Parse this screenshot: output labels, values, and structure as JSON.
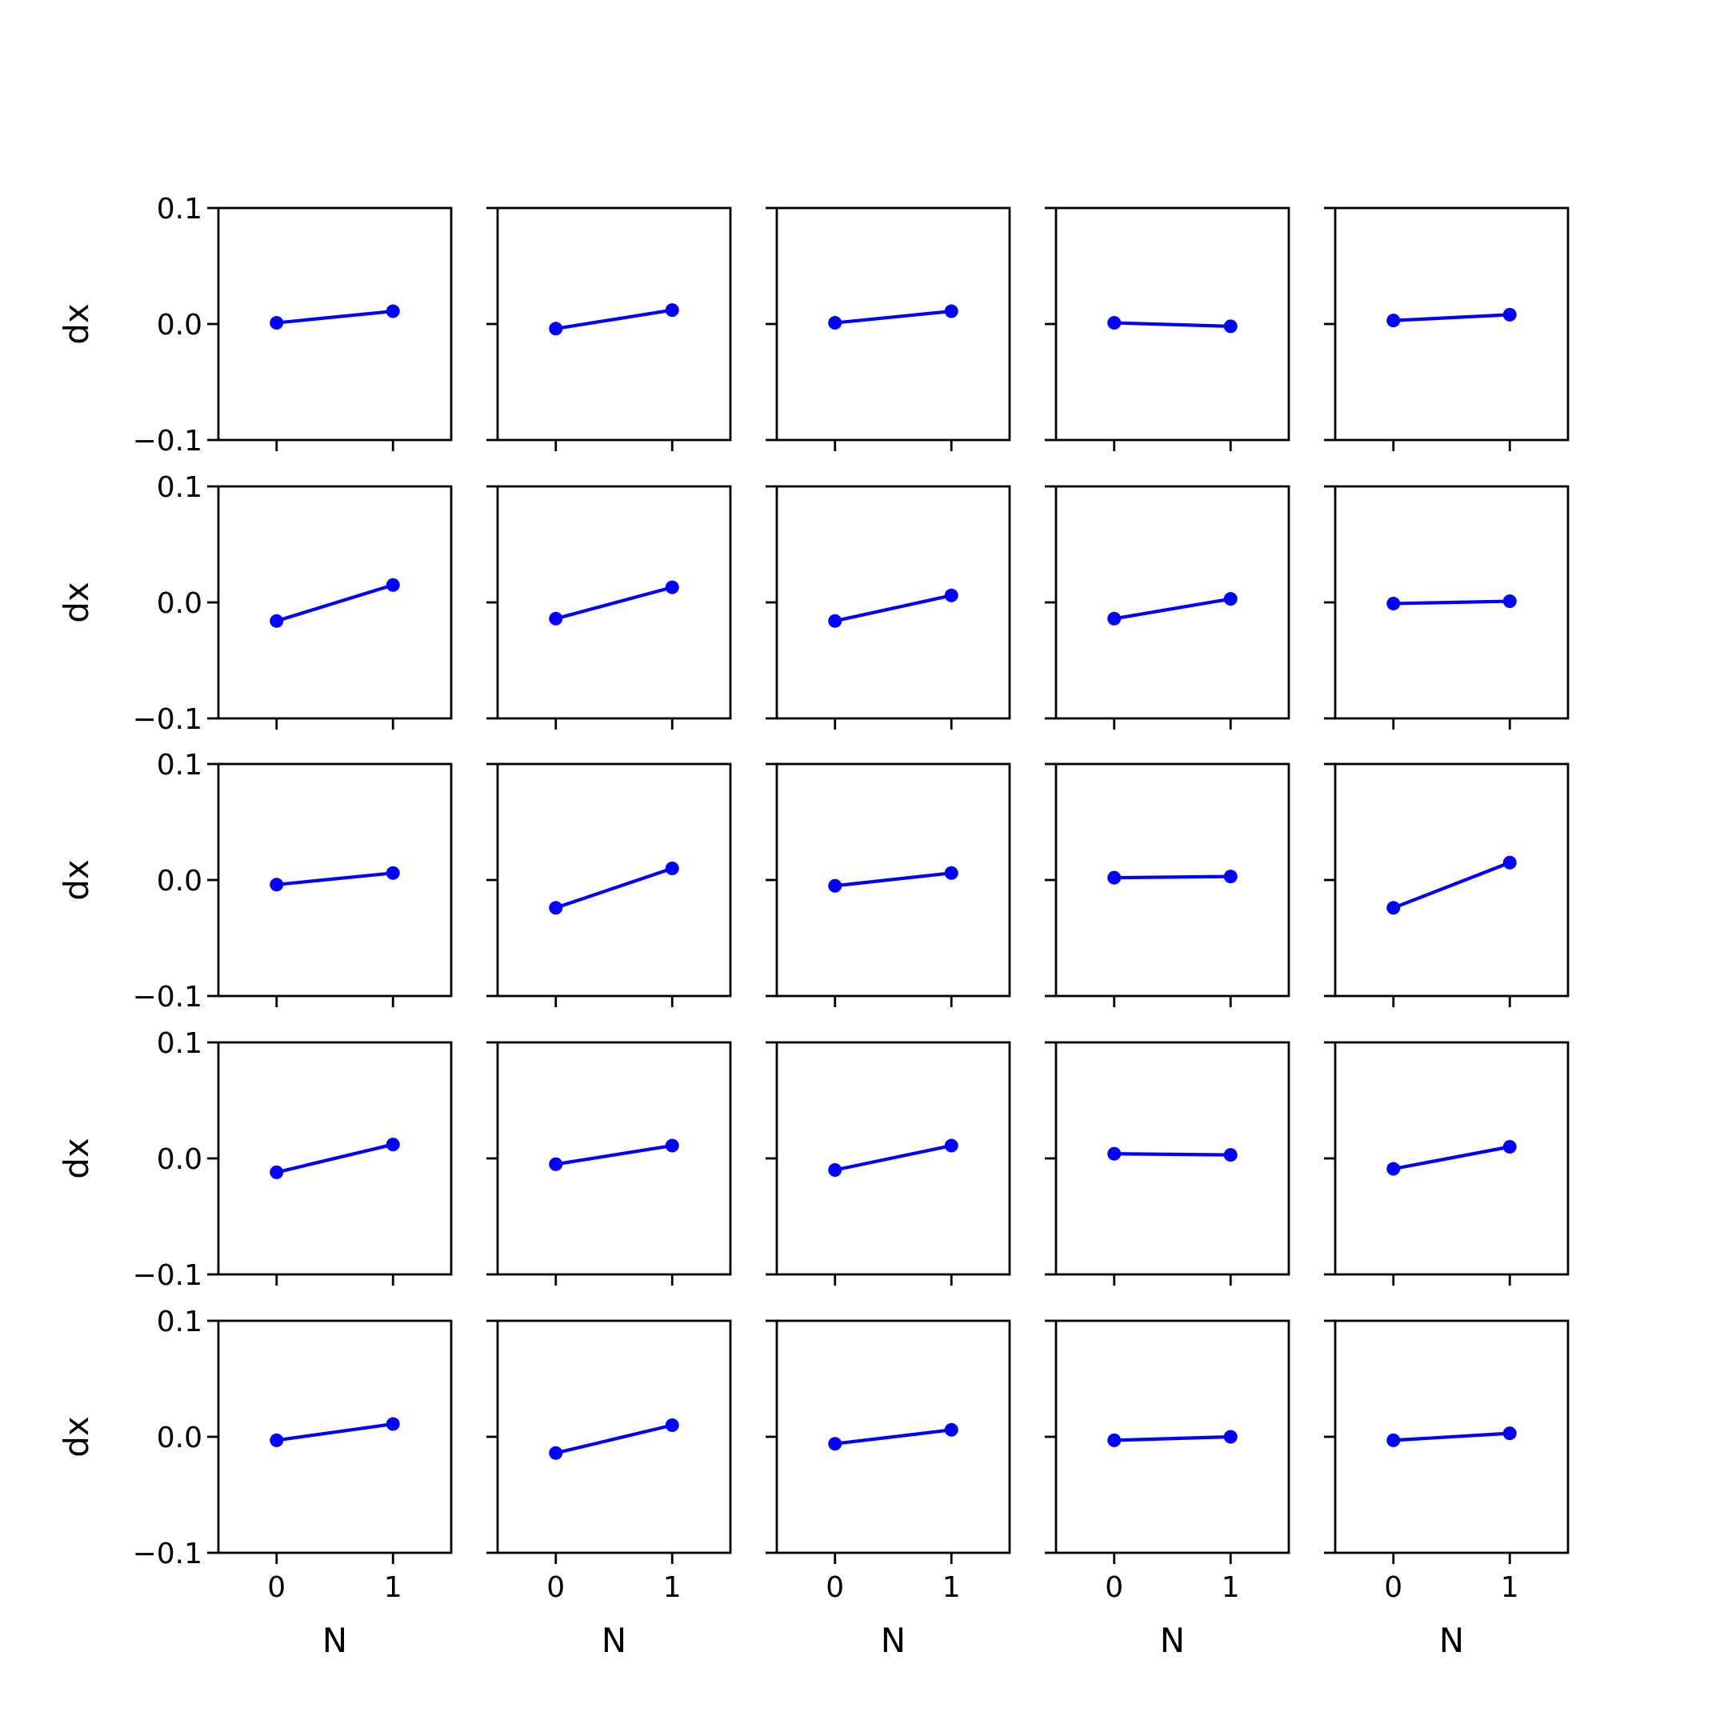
{
  "chart_data": {
    "type": "line",
    "layout": "5x5 grid of subplots",
    "x": [
      0,
      1
    ],
    "xticks": [
      "0",
      "1"
    ],
    "xlim": [
      -0.5,
      1.5
    ],
    "ylim": [
      -0.1,
      0.1
    ],
    "yticks": [
      "0.1",
      "0.0",
      "−0.1"
    ],
    "xlabel": "N",
    "ylabel": "dx",
    "line_color": "#0000ff",
    "marker": "circle",
    "grid": false,
    "panels": [
      [
        [
          0.001,
          0.011
        ],
        [
          -0.004,
          0.012
        ],
        [
          0.001,
          0.011
        ],
        [
          0.001,
          -0.002
        ],
        [
          0.003,
          0.008
        ]
      ],
      [
        [
          -0.016,
          0.015
        ],
        [
          -0.014,
          0.013
        ],
        [
          -0.016,
          0.006
        ],
        [
          -0.014,
          0.003
        ],
        [
          -0.001,
          0.001
        ]
      ],
      [
        [
          -0.004,
          0.006
        ],
        [
          -0.024,
          0.01
        ],
        [
          -0.005,
          0.006
        ],
        [
          0.002,
          0.003
        ],
        [
          -0.024,
          0.015
        ]
      ],
      [
        [
          -0.012,
          0.012
        ],
        [
          -0.005,
          0.011
        ],
        [
          -0.01,
          0.011
        ],
        [
          0.004,
          0.003
        ],
        [
          -0.009,
          0.01
        ]
      ],
      [
        [
          -0.003,
          0.011
        ],
        [
          -0.014,
          0.01
        ],
        [
          -0.006,
          0.006
        ],
        [
          -0.003,
          0.0
        ],
        [
          -0.003,
          0.003
        ]
      ]
    ]
  }
}
